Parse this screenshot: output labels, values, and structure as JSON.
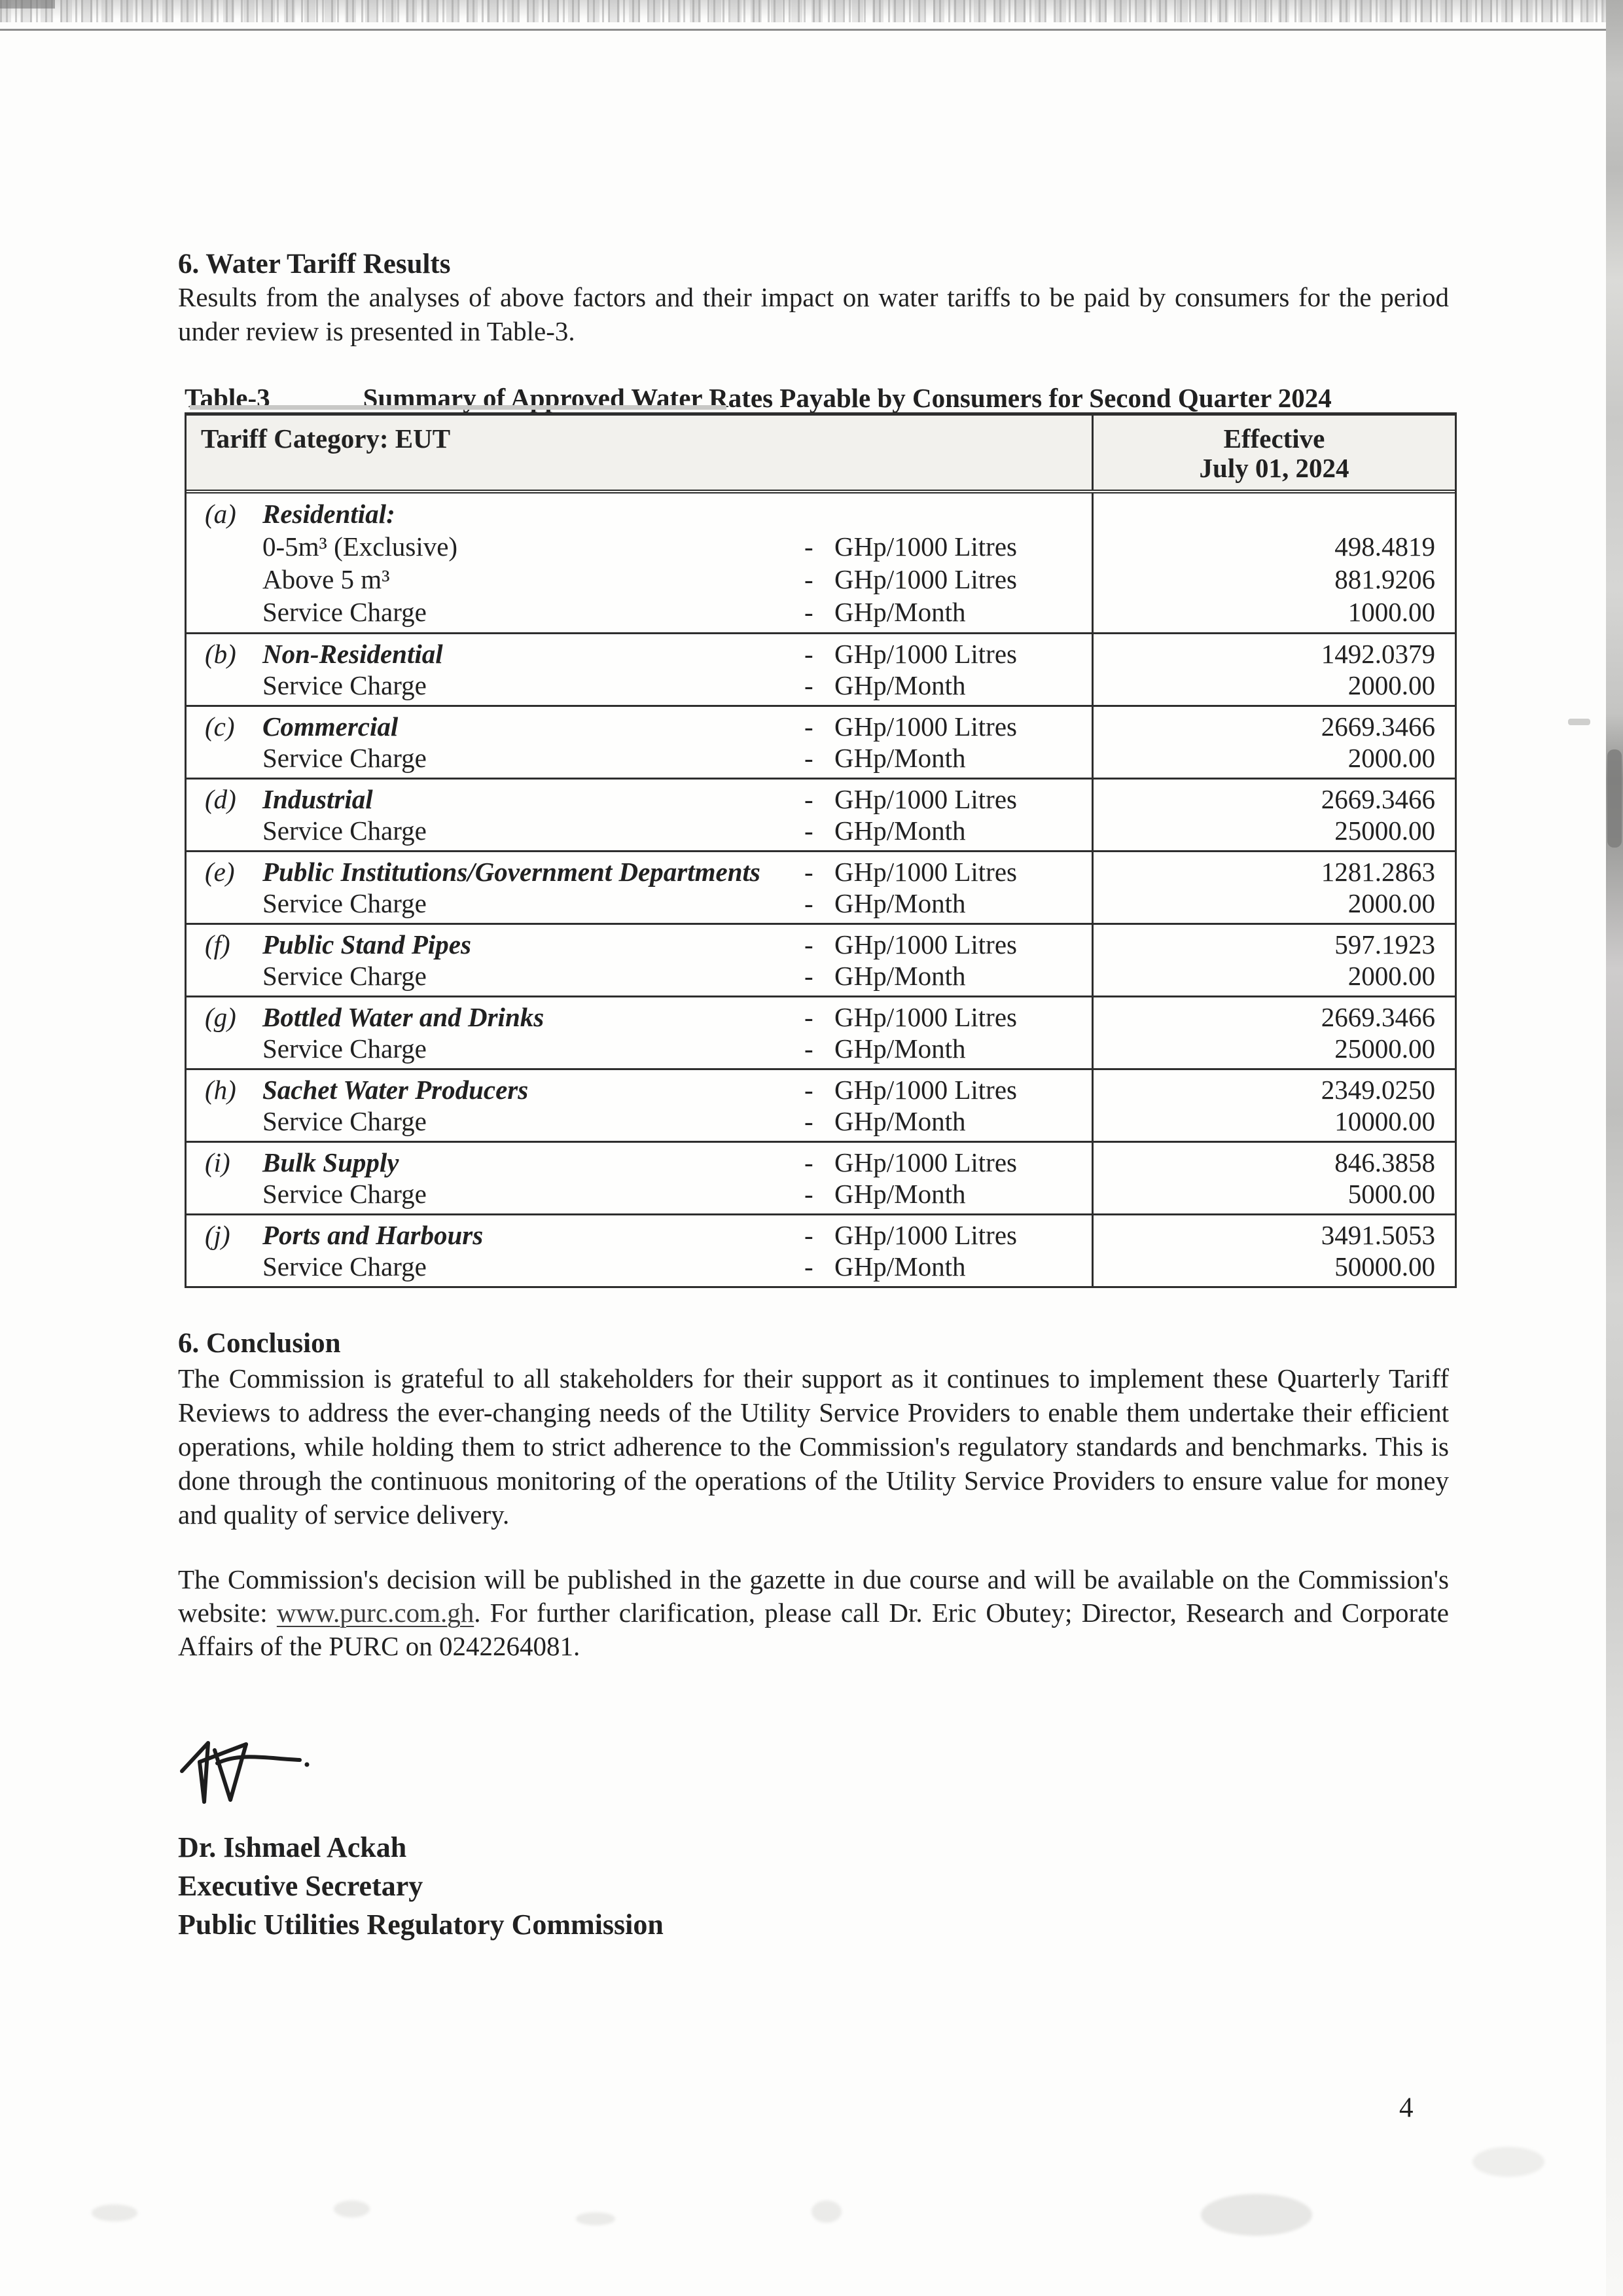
{
  "document": {
    "page_number": "4",
    "water_tariff_section": {
      "heading": "6. Water Tariff Results",
      "intro": "Results from the analyses of above factors and their impact on water tariffs to be paid by consumers for the period under review is presented in Table-3."
    },
    "table": {
      "label": "Table-3",
      "title": "Summary of Approved Water Rates Payable by Consumers for Second Quarter 2024",
      "header": {
        "category_label": "Tariff Category: EUT",
        "effective_label": "Effective",
        "effective_date": "July 01, 2024"
      },
      "rows": [
        {
          "lines": [
            {
              "letter": "(a)",
              "text": "Residential:",
              "bold": true
            },
            {
              "text": "0-5m³ (Exclusive)",
              "dash": "-",
              "unit": "GHp/1000 Litres",
              "value": "498.4819"
            },
            {
              "text": "Above 5 m³",
              "dash": "-",
              "unit": "GHp/1000 Litres",
              "value": "881.9206"
            },
            {
              "text": "Service Charge",
              "dash": "-",
              "unit": "GHp/Month",
              "value": "1000.00"
            }
          ]
        },
        {
          "lines": [
            {
              "letter": "(b)",
              "text": "Non-Residential",
              "bold": true,
              "dash": "-",
              "unit": "GHp/1000 Litres",
              "value": "1492.0379"
            },
            {
              "text": "Service Charge",
              "dash": "-",
              "unit": "GHp/Month",
              "value": "2000.00"
            }
          ]
        },
        {
          "lines": [
            {
              "letter": "(c)",
              "text": "Commercial",
              "bold": true,
              "dash": "-",
              "unit": "GHp/1000 Litres",
              "value": "2669.3466"
            },
            {
              "text": "Service Charge",
              "dash": "-",
              "unit": "GHp/Month",
              "value": "2000.00"
            }
          ]
        },
        {
          "lines": [
            {
              "letter": "(d)",
              "text": "Industrial",
              "bold": true,
              "dash": "-",
              "unit": "GHp/1000 Litres",
              "value": "2669.3466"
            },
            {
              "text": "Service Charge",
              "dash": "-",
              "unit": "GHp/Month",
              "value": "25000.00"
            }
          ]
        },
        {
          "lines": [
            {
              "letter": "(e)",
              "text": "Public Institutions/Government Departments",
              "bold": true,
              "dash": "-",
              "unit": "GHp/1000 Litres",
              "value": "1281.2863"
            },
            {
              "text": "Service Charge",
              "dash": "-",
              "unit": "GHp/Month",
              "value": "2000.00"
            }
          ]
        },
        {
          "lines": [
            {
              "letter": "(f)",
              "text": "Public Stand Pipes",
              "bold": true,
              "dash": "-",
              "unit": "GHp/1000 Litres",
              "value": "597.1923"
            },
            {
              "text": "Service Charge",
              "dash": "-",
              "unit": "GHp/Month",
              "value": "2000.00"
            }
          ]
        },
        {
          "lines": [
            {
              "letter": "(g)",
              "text": "Bottled Water and Drinks",
              "bold": true,
              "dash": "-",
              "unit": "GHp/1000 Litres",
              "value": "2669.3466"
            },
            {
              "text": "Service Charge",
              "dash": "-",
              "unit": "GHp/Month",
              "value": "25000.00"
            }
          ]
        },
        {
          "lines": [
            {
              "letter": "(h)",
              "text": "Sachet Water Producers",
              "bold": true,
              "dash": "-",
              "unit": "GHp/1000 Litres",
              "value": "2349.0250"
            },
            {
              "text": "Service Charge",
              "dash": "-",
              "unit": "GHp/Month",
              "value": "10000.00"
            }
          ]
        },
        {
          "lines": [
            {
              "letter": "(i)",
              "text": "Bulk Supply",
              "bold": true,
              "dash": "-",
              "unit": "GHp/1000 Litres",
              "value": "846.3858"
            },
            {
              "text": "Service Charge",
              "dash": "-",
              "unit": "GHp/Month",
              "value": "5000.00"
            }
          ]
        },
        {
          "lines": [
            {
              "letter": "(j)",
              "text": "Ports and Harbours",
              "bold": true,
              "dash": "-",
              "unit": "GHp/1000 Litres",
              "value": "3491.5053"
            },
            {
              "text": "Service Charge",
              "dash": "-",
              "unit": "GHp/Month",
              "value": "50000.00"
            }
          ]
        }
      ]
    },
    "conclusion_section": {
      "heading": "6. Conclusion",
      "paragraph1": "The Commission is grateful to all stakeholders for their support as it continues to implement these Quarterly Tariff Reviews to address the ever-changing needs of the Utility Service Providers to enable them undertake their efficient operations, while holding them to strict adherence to the Commission's regulatory standards and benchmarks. This is done through the continuous monitoring of the operations of the Utility Service Providers to ensure value for money and quality of service delivery.",
      "paragraph2_prefix": "The Commission's decision will be published in the gazette in due course and will be available on the Commission's website: ",
      "website_link": "www.purc.com.gh",
      "paragraph2_suffix": ". For further clarification, please call Dr. Eric Obutey; Director, Research and Corporate Affairs of the PURC on 0242264081."
    },
    "signatory": {
      "name": "Dr. Ishmael Ackah",
      "title": "Executive Secretary",
      "organization": "Public Utilities Regulatory Commission"
    }
  }
}
